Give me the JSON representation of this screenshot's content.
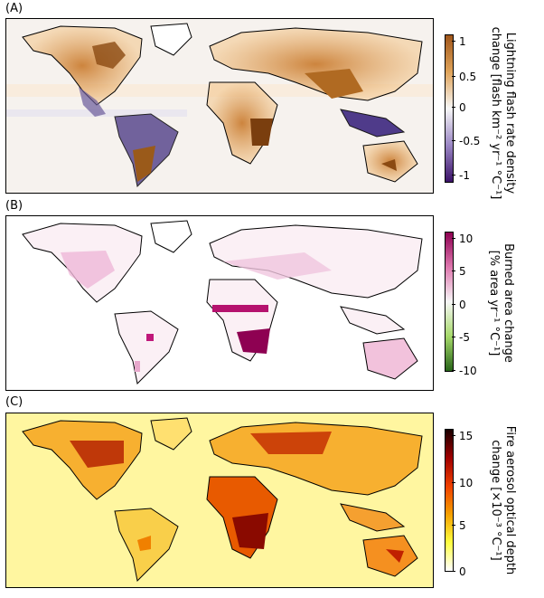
{
  "panels": [
    {
      "label": "(A)",
      "colorbar_title_line1": "Lightning flash rate density",
      "colorbar_title_line2": "change [flash km⁻² yr⁻¹ °C⁻¹]",
      "ticks": [
        "1",
        "0.5",
        "0",
        "-0.5",
        "-1"
      ],
      "colors": {
        "high": "#a0561a",
        "mid": "#f7f7f7",
        "low": "#3b1268"
      }
    },
    {
      "label": "(B)",
      "colorbar_title_line1": "Burned area change",
      "colorbar_title_line2": "[% area yr⁻¹ °C⁻¹]",
      "ticks": [
        "10",
        "5",
        "0",
        "-5",
        "-10"
      ],
      "colors": {
        "high": "#8e0152",
        "mid": "#f7f7f7",
        "low": "#276419"
      }
    },
    {
      "label": "(C)",
      "colorbar_title_line1": "Fire aerosol optical depth",
      "colorbar_title_line2": "change [×10⁻³ °C⁻¹]",
      "ticks": [
        "15",
        "10",
        "5",
        "0"
      ],
      "colors": {
        "high": "#1a0000",
        "mid": "#f08000",
        "low": "#ffffff"
      }
    }
  ]
}
